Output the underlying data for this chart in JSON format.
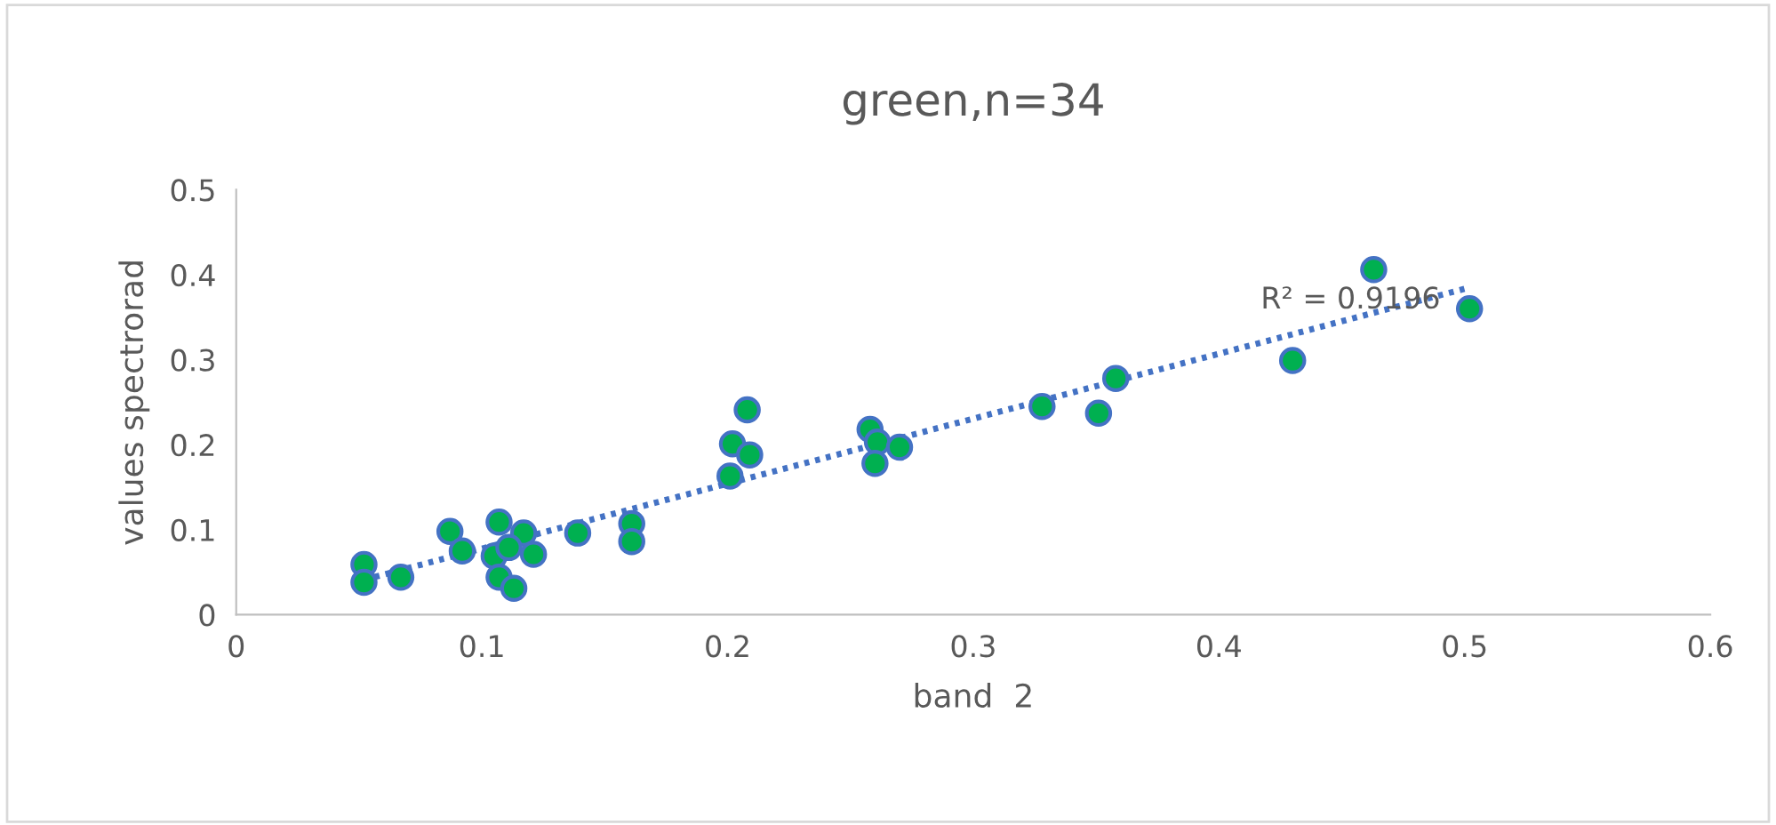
{
  "chart_data": {
    "type": "scatter",
    "title": "green,n=34",
    "xlabel": "band  2",
    "ylabel": "values spectrorad",
    "xlim": [
      0,
      0.6
    ],
    "ylim": [
      0,
      0.5
    ],
    "xticks": [
      0,
      0.1,
      0.2,
      0.3,
      0.4,
      0.5,
      0.6
    ],
    "yticks": [
      0,
      0.1,
      0.2,
      0.3,
      0.4,
      0.5
    ],
    "grid": false,
    "legend": false,
    "annotations": [
      "R² = 0.9196"
    ],
    "series": [
      {
        "color": "#00b050",
        "marker": "circle",
        "x": [
          0.052,
          0.052,
          0.067,
          0.087,
          0.092,
          0.107,
          0.105,
          0.107,
          0.117,
          0.111,
          0.121,
          0.113,
          0.139,
          0.161,
          0.161,
          0.208,
          0.202,
          0.209,
          0.201,
          0.258,
          0.261,
          0.27,
          0.26,
          0.328,
          0.351,
          0.358,
          0.43,
          0.463,
          0.502
        ],
        "values": [
          0.059,
          0.038,
          0.044,
          0.098,
          0.075,
          0.109,
          0.069,
          0.044,
          0.096,
          0.079,
          0.071,
          0.031,
          0.096,
          0.107,
          0.086,
          0.241,
          0.201,
          0.188,
          0.163,
          0.218,
          0.203,
          0.197,
          0.178,
          0.245,
          0.237,
          0.278,
          0.299,
          0.406,
          0.36
        ]
      },
      {
        "type": "line",
        "color": "#4472c4",
        "line_style": "dotted",
        "x": [
          0.052,
          0.502
        ],
        "values": [
          0.041,
          0.385
        ]
      }
    ]
  }
}
